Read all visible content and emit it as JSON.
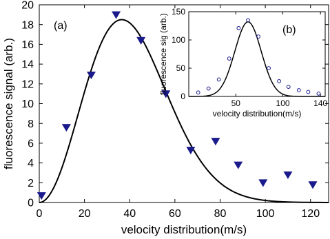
{
  "chart_data": [
    {
      "panel": "(a)",
      "type": "scatter",
      "xlabel": "velocity distribution(m/s)",
      "ylabel": "fluorescence signal (arb.)",
      "xlim": [
        0,
        128
      ],
      "ylim": [
        0,
        20
      ],
      "x_ticks": [
        "0",
        "20",
        "40",
        "60",
        "80",
        "100",
        "120"
      ],
      "y_ticks": [
        "0",
        "2",
        "4",
        "6",
        "8",
        "10",
        "12",
        "14",
        "16",
        "18",
        "20"
      ],
      "series": [
        {
          "marker": "triangle-down",
          "color": "#1a1a8c",
          "points": [
            {
              "x": 1,
              "y": 0.7
            },
            {
              "x": 12,
              "y": 7.6
            },
            {
              "x": 23,
              "y": 12.9
            },
            {
              "x": 34,
              "y": 19.0
            },
            {
              "x": 45,
              "y": 16.4
            },
            {
              "x": 56,
              "y": 11.0
            },
            {
              "x": 67,
              "y": 5.3
            },
            {
              "x": 78,
              "y": 6.2
            },
            {
              "x": 88,
              "y": 3.8
            },
            {
              "x": 99,
              "y": 2.0
            },
            {
              "x": 110,
              "y": 2.8
            },
            {
              "x": 121,
              "y": 1.8
            }
          ]
        },
        {
          "style": "line",
          "color": "#000000",
          "curve": {
            "kind": "maxwell-boltzmann",
            "peak_x": 36.5,
            "peak_y": 18.5
          }
        }
      ]
    },
    {
      "panel": "(b)",
      "type": "scatter",
      "xlabel": "velocity distribution(m/s)",
      "ylabel": "fluorescence sig (arb.)",
      "xlim": [
        0,
        145
      ],
      "ylim": [
        0,
        150
      ],
      "x_ticks": [
        "50",
        "100",
        "140"
      ],
      "x_tick_values": [
        50,
        100,
        140
      ],
      "y_ticks": [
        "0",
        "50",
        "100",
        "150"
      ],
      "series": [
        {
          "marker": "circle-open",
          "color": "#1a1a8c",
          "points": [
            {
              "x": 10,
              "y": 7
            },
            {
              "x": 21,
              "y": 14
            },
            {
              "x": 32,
              "y": 30
            },
            {
              "x": 43,
              "y": 67
            },
            {
              "x": 53,
              "y": 121
            },
            {
              "x": 63,
              "y": 135
            },
            {
              "x": 74,
              "y": 106
            },
            {
              "x": 85,
              "y": 50
            },
            {
              "x": 96,
              "y": 27
            },
            {
              "x": 106,
              "y": 17
            },
            {
              "x": 117,
              "y": 11
            },
            {
              "x": 127,
              "y": 8
            },
            {
              "x": 138,
              "y": 5
            }
          ]
        },
        {
          "style": "line",
          "color": "#000000",
          "curve": {
            "kind": "gaussian",
            "center": 63,
            "amplitude": 132,
            "sigma": 14
          }
        }
      ]
    }
  ]
}
